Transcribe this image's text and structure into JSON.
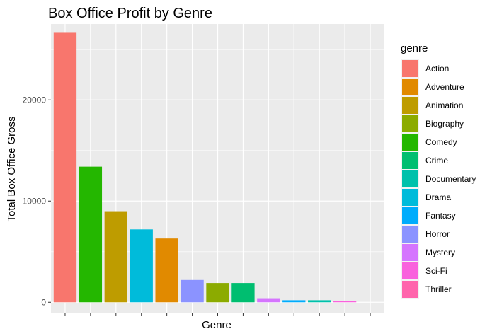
{
  "chart_data": {
    "type": "bar",
    "title": "Box Office Profit by Genre",
    "xlabel": "Genre",
    "ylabel": "Total Box Office Gross",
    "ylim": [
      -1100,
      27500
    ],
    "yticks": [
      0,
      10000,
      20000
    ],
    "ytick_labels": [
      "0",
      "10000",
      "20000"
    ],
    "bars": [
      {
        "genre": "Action",
        "value": 26700
      },
      {
        "genre": "Comedy",
        "value": 13400
      },
      {
        "genre": "Animation",
        "value": 9000
      },
      {
        "genre": "Drama",
        "value": 7200
      },
      {
        "genre": "Adventure",
        "value": 6300
      },
      {
        "genre": "Horror",
        "value": 2200
      },
      {
        "genre": "Biography",
        "value": 1900
      },
      {
        "genre": "Crime",
        "value": 1900
      },
      {
        "genre": "Mystery",
        "value": 400
      },
      {
        "genre": "Fantasy",
        "value": 200
      },
      {
        "genre": "Documentary",
        "value": 200
      },
      {
        "genre": "Sci-Fi",
        "value": 100
      },
      {
        "genre": "Thriller",
        "value": 0
      }
    ],
    "legend": {
      "title": "genre",
      "position": "right",
      "items": [
        {
          "label": "Action",
          "color": "#F8766D"
        },
        {
          "label": "Adventure",
          "color": "#E18A00"
        },
        {
          "label": "Animation",
          "color": "#BE9C00"
        },
        {
          "label": "Biography",
          "color": "#8CAB00"
        },
        {
          "label": "Comedy",
          "color": "#24B700"
        },
        {
          "label": "Crime",
          "color": "#00BE70"
        },
        {
          "label": "Documentary",
          "color": "#00C1AB"
        },
        {
          "label": "Drama",
          "color": "#00BBDA"
        },
        {
          "label": "Fantasy",
          "color": "#00ACFC"
        },
        {
          "label": "Horror",
          "color": "#8B93FF"
        },
        {
          "label": "Mystery",
          "color": "#D575FE"
        },
        {
          "label": "Sci-Fi",
          "color": "#F962DD"
        },
        {
          "label": "Thriller",
          "color": "#FF65AC"
        }
      ]
    },
    "grid": true,
    "panel_background": "#EBEBEB",
    "grid_color": "#FFFFFF"
  }
}
